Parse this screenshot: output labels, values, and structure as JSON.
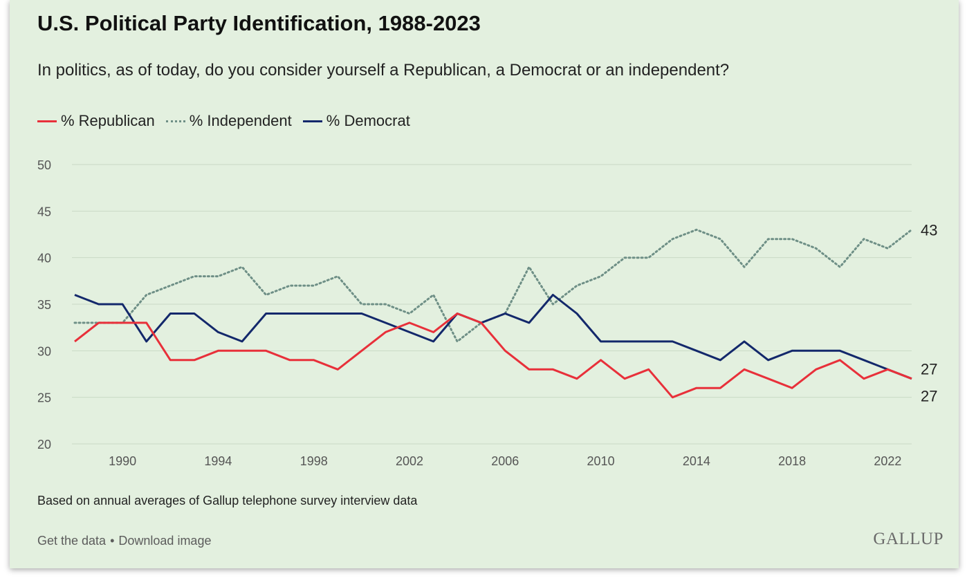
{
  "header": {
    "title": "U.S. Political Party Identification, 1988-2023",
    "subtitle": "In politics, as of today, do you consider yourself a Republican, a Democrat or an independent?"
  },
  "legend": [
    {
      "label": "% Republican",
      "color": "#e8303a",
      "style": "solid"
    },
    {
      "label": "% Independent",
      "color": "#6e8f86",
      "style": "dotted"
    },
    {
      "label": "% Democrat",
      "color": "#13286b",
      "style": "solid"
    }
  ],
  "footnote": "Based on annual averages of Gallup telephone survey interview data",
  "links": {
    "get_data": "Get the data",
    "separator": "•",
    "download": "Download image"
  },
  "brand": "GALLUP",
  "chart_data": {
    "type": "line",
    "x": [
      1988,
      1989,
      1990,
      1991,
      1992,
      1993,
      1994,
      1995,
      1996,
      1997,
      1998,
      1999,
      2000,
      2001,
      2002,
      2003,
      2004,
      2005,
      2006,
      2007,
      2008,
      2009,
      2010,
      2011,
      2012,
      2013,
      2014,
      2015,
      2016,
      2017,
      2018,
      2019,
      2020,
      2021,
      2022,
      2023
    ],
    "series": [
      {
        "name": "% Republican",
        "color": "#e8303a",
        "style": "solid",
        "values": [
          31,
          33,
          33,
          33,
          29,
          29,
          30,
          30,
          30,
          29,
          29,
          28,
          30,
          32,
          33,
          32,
          34,
          33,
          30,
          28,
          28,
          27,
          29,
          27,
          28,
          25,
          26,
          26,
          28,
          27,
          26,
          28,
          29,
          27,
          28,
          27
        ]
      },
      {
        "name": "% Independent",
        "color": "#6e8f86",
        "style": "dotted",
        "values": [
          33,
          33,
          33,
          36,
          37,
          38,
          38,
          39,
          36,
          37,
          37,
          38,
          35,
          35,
          34,
          36,
          31,
          33,
          34,
          39,
          35,
          37,
          38,
          40,
          40,
          42,
          43,
          42,
          39,
          42,
          42,
          41,
          39,
          42,
          41,
          43
        ]
      },
      {
        "name": "% Democrat",
        "color": "#13286b",
        "style": "solid",
        "values": [
          36,
          35,
          35,
          31,
          34,
          34,
          32,
          31,
          34,
          34,
          34,
          34,
          34,
          33,
          32,
          31,
          34,
          33,
          34,
          33,
          36,
          34,
          31,
          31,
          31,
          31,
          30,
          29,
          31,
          29,
          30,
          30,
          30,
          29,
          28,
          27
        ]
      }
    ],
    "xticks": [
      1990,
      1994,
      1998,
      2002,
      2006,
      2010,
      2014,
      2018,
      2022
    ],
    "yticks": [
      20,
      25,
      30,
      35,
      40,
      45,
      50
    ],
    "ylim": [
      20,
      50
    ],
    "xlim": [
      1988,
      2023
    ],
    "end_labels": [
      {
        "series": "% Independent",
        "text": "43"
      },
      {
        "series": "% Democrat",
        "text": "27"
      },
      {
        "series": "% Republican",
        "text": "27"
      }
    ],
    "grid": true,
    "legend_position": "top-left"
  }
}
